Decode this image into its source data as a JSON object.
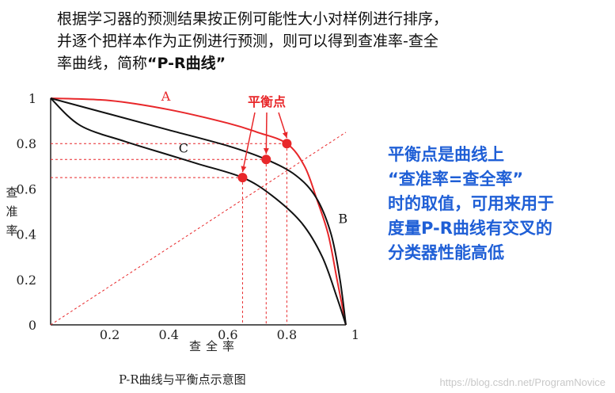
{
  "intro": {
    "line1": "根据学习器的预测结果按正例可能性大小对样例进行排序，",
    "line2": "并逐个把样本作为正例进行预测，则可以得到查准率-查全",
    "line3_prefix": "率曲线，简称",
    "line3_bold": "“P-R曲线”"
  },
  "side_note": {
    "lines": [
      "平衡点是曲线上",
      "“查准率=查全率”",
      "时的取值，可用来用于",
      "度量P-R曲线有交叉的",
      "分类器性能高低"
    ]
  },
  "caption": "P-R曲线与平衡点示意图",
  "watermark": "https://blog.csdn.net/ProgramNovice",
  "colors": {
    "red": "#e8272a",
    "black": "#111111",
    "note_blue": "#1f5fd6"
  },
  "chart_data": {
    "type": "line",
    "xlabel": "查全率",
    "ylabel": "查准率",
    "x_ticks": [
      "0",
      "0.2",
      "0.4",
      "0.6",
      "0.8",
      "1"
    ],
    "y_ticks": [
      "0",
      "0.2",
      "0.4",
      "0.6",
      "0.8",
      "1"
    ],
    "xlim": [
      0,
      1
    ],
    "ylim": [
      0,
      1
    ],
    "series": [
      {
        "name": "A",
        "color": "#e8272a",
        "points": [
          [
            0,
            1
          ],
          [
            0.2,
            0.99
          ],
          [
            0.4,
            0.95
          ],
          [
            0.6,
            0.89
          ],
          [
            0.7,
            0.85
          ],
          [
            0.8,
            0.8
          ],
          [
            0.86,
            0.7
          ],
          [
            0.9,
            0.56
          ],
          [
            0.94,
            0.4
          ],
          [
            0.97,
            0.2
          ],
          [
            1,
            0
          ]
        ]
      },
      {
        "name": "B",
        "color": "#111111",
        "points": [
          [
            0,
            1
          ],
          [
            0.2,
            0.93
          ],
          [
            0.4,
            0.86
          ],
          [
            0.6,
            0.79
          ],
          [
            0.73,
            0.73
          ],
          [
            0.83,
            0.66
          ],
          [
            0.9,
            0.56
          ],
          [
            0.95,
            0.4
          ],
          [
            0.98,
            0.2
          ],
          [
            1,
            0
          ]
        ]
      },
      {
        "name": "C",
        "color": "#111111",
        "points": [
          [
            0,
            1
          ],
          [
            0.1,
            0.88
          ],
          [
            0.25,
            0.81
          ],
          [
            0.4,
            0.75
          ],
          [
            0.5,
            0.71
          ],
          [
            0.65,
            0.65
          ],
          [
            0.75,
            0.57
          ],
          [
            0.85,
            0.45
          ],
          [
            0.92,
            0.3
          ],
          [
            0.97,
            0.12
          ],
          [
            1,
            0
          ]
        ]
      }
    ],
    "diagonal": {
      "points": [
        [
          0,
          0
        ],
        [
          1,
          0.85
        ]
      ]
    },
    "break_even_points": [
      {
        "series": "C",
        "x": 0.65,
        "y": 0.65
      },
      {
        "series": "B",
        "x": 0.73,
        "y": 0.73
      },
      {
        "series": "A",
        "x": 0.8,
        "y": 0.8
      }
    ],
    "annotation": "平衡点"
  }
}
